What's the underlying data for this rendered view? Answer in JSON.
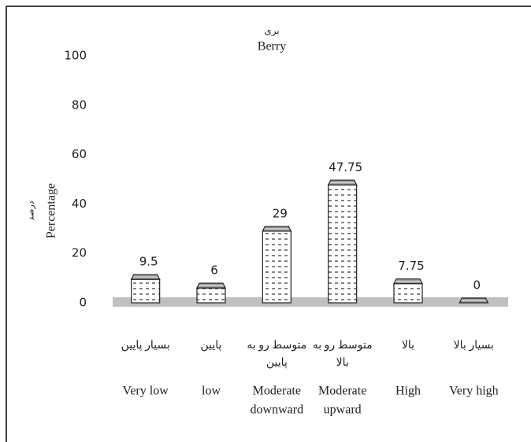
{
  "chart_data": {
    "type": "bar",
    "title": "بری",
    "subtitle": "Berry",
    "y_label": "Percentage",
    "y_label_fa": "درصد",
    "categories": [
      [
        "Very low"
      ],
      [
        "low"
      ],
      [
        "Moderate",
        "downward"
      ],
      [
        "Moderate",
        "upward"
      ],
      [
        "High"
      ],
      [
        "Very high"
      ]
    ],
    "categories_fa": [
      [
        "بسیار پایین"
      ],
      [
        "پایین"
      ],
      [
        "متوسط رو به",
        "پایین"
      ],
      [
        "متوسط رو به",
        "بالا"
      ],
      [
        "بالا"
      ],
      [
        "بسیار بالا"
      ]
    ],
    "values": [
      9.5,
      6,
      29,
      47.75,
      7.75,
      0
    ],
    "color": "#ffffff",
    "ylim": [
      0,
      100
    ],
    "yticks": [
      0,
      20,
      40,
      60,
      80,
      100
    ],
    "grid": false
  }
}
